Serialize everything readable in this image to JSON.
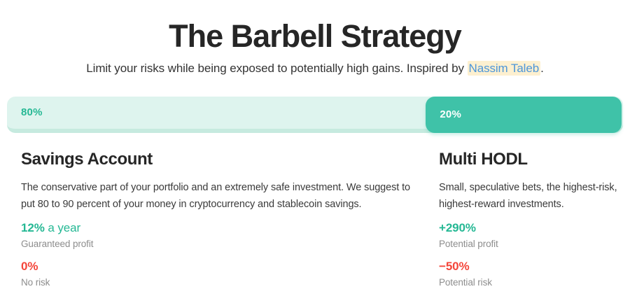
{
  "page": {
    "title": "The Barbell Strategy",
    "subtitle_before": "Limit your risks while being exposed to potentially high gains. Inspired by ",
    "subtitle_link": "Nassim Taleb",
    "subtitle_after": "."
  },
  "allocation_bar": {
    "left_label": "80%",
    "right_label": "20%",
    "left_value": 80,
    "right_value": 20
  },
  "columns": {
    "left": {
      "heading": "Savings Account",
      "description": "The conservative part of your portfolio and an extremely safe investment. We suggest to put 80 to 90 percent of your money in cryptocurrency and stablecoin savings.",
      "stats": [
        {
          "value": "12%",
          "value_suffix": " a year",
          "label": "Guaranteed profit",
          "type": "positive"
        },
        {
          "value": "0%",
          "value_suffix": "",
          "label": "No risk",
          "type": "negative"
        }
      ]
    },
    "right": {
      "heading": "Multi HODL",
      "description": "Small, speculative bets, the highest-risk, highest-reward investments.",
      "stats": [
        {
          "value": "+290%",
          "value_suffix": "",
          "label": "Potential profit",
          "type": "positive"
        },
        {
          "value": "−50%",
          "value_suffix": "",
          "label": "Potential risk",
          "type": "negative"
        }
      ]
    }
  },
  "colors": {
    "bar_teal": "#3fc2a8",
    "teal_text": "#25b894",
    "mint_light": "#def4ee",
    "mint_border": "#c6eadf",
    "negative_red": "#f4453a",
    "label_gray": "#8d8d8d",
    "link_blue": "#4d96d9",
    "link_highlight": "#fdf0d0",
    "heading_dark": "#262626"
  }
}
